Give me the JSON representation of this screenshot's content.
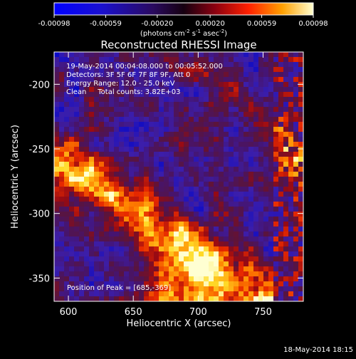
{
  "chart_data": {
    "type": "heatmap",
    "title": "Reconstructed RHESSI Image",
    "xlabel": "Heliocentric X (arcsec)",
    "ylabel": "Heliocentric Y (arcsec)",
    "xlim": [
      589,
      781
    ],
    "ylim": [
      -368,
      -175
    ],
    "xticks": [
      "600",
      "650",
      "700",
      "750"
    ],
    "yticks": [
      "-200",
      "-250",
      "-300",
      "-350"
    ],
    "xtick_values": [
      600,
      650,
      700,
      750
    ],
    "ytick_values": [
      -200,
      -250,
      -300,
      -350
    ],
    "colorbar": {
      "ticks": [
        "-0.00098",
        "-0.00059",
        "-0.00020",
        "0.00020",
        "0.00059",
        "0.00098"
      ],
      "min": -0.00098,
      "max": 0.00098,
      "units_text": "(photons cm",
      "units_exp1": "-2",
      "units_mid": " s",
      "units_exp2": "-1",
      "units_end": " asec",
      "units_exp3": "-2",
      "units_close": ")"
    },
    "annotations": [
      "19-May-2014 00:04:08.000 to 00:05:52.000",
      "Detectors: 3F 5F 6F 7F 8F 9F, Att 0",
      "Energy Range: 12.0 - 25.0 keV",
      "Clean     Total counts: 3.82E+03"
    ],
    "peak_label": "Position of Peak = [685,-369]",
    "peak_x": 685,
    "peak_y": -369,
    "colors": {
      "low": "#0000ff",
      "mid": "#3a0060",
      "high": "#ffffff",
      "hot": "#ffd000"
    }
  },
  "footer": {
    "timestamp": "18-May-2014 18:15"
  }
}
